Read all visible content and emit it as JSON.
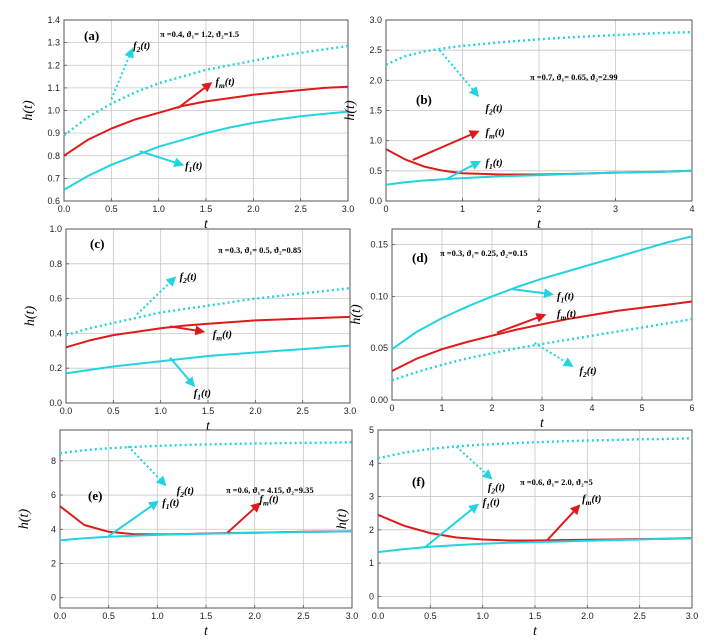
{
  "figure": {
    "y_axis_label": "h(t)",
    "x_axis_label": "t"
  },
  "chart_data": [
    {
      "type": "line",
      "panel_label": "(a)",
      "params_text": "π =0.4, ϑ₁= 1.2, ϑ₂=1.5",
      "xlabel": "t",
      "ylabel": "h(t)",
      "xlim": [
        0,
        3
      ],
      "ylim": [
        0.6,
        1.4
      ],
      "xticks": [
        0,
        0.5,
        1,
        1.5,
        2,
        2.5,
        3
      ],
      "xtick_labels": [
        "0.0",
        "0.5",
        "1.0",
        "1.5",
        "2.0",
        "2.5",
        "3.0"
      ],
      "yticks": [
        0.6,
        0.7,
        0.8,
        0.9,
        1.0,
        1.1,
        1.2,
        1.3,
        1.4
      ],
      "ytick_labels": [
        "0.6",
        "0.7",
        "0.8",
        "0.9",
        "1.0",
        "1.1",
        "1.2",
        "1.3",
        "1.4"
      ],
      "grid": true,
      "x": [
        0,
        0.25,
        0.5,
        0.75,
        1,
        1.25,
        1.5,
        1.75,
        2,
        2.25,
        2.5,
        2.75,
        3
      ],
      "series": [
        {
          "name": "f2(t)",
          "style": "dotted",
          "color": "#22d3e0",
          "values": [
            0.89,
            0.97,
            1.03,
            1.08,
            1.12,
            1.15,
            1.18,
            1.2,
            1.22,
            1.24,
            1.255,
            1.27,
            1.285
          ]
        },
        {
          "name": "fm(t)",
          "style": "solid",
          "color": "#e01a1a",
          "values": [
            0.8,
            0.87,
            0.92,
            0.96,
            0.99,
            1.02,
            1.04,
            1.055,
            1.07,
            1.08,
            1.09,
            1.1,
            1.105
          ]
        },
        {
          "name": "f1(t)",
          "style": "solid",
          "color": "#22d3e0",
          "values": [
            0.65,
            0.71,
            0.76,
            0.8,
            0.84,
            0.87,
            0.9,
            0.925,
            0.945,
            0.96,
            0.975,
            0.985,
            0.995
          ]
        }
      ],
      "annotations": [
        {
          "text": "f",
          "sub": "2",
          "suffix": "(t)",
          "color": "#22d3e0",
          "style": "dotted",
          "from": [
            0.5,
            1.05
          ],
          "to": [
            0.72,
            1.27
          ],
          "label_at": [
            0.73,
            1.29
          ]
        },
        {
          "text": "f",
          "sub": "m",
          "suffix": "(t)",
          "color": "#e01a1a",
          "style": "solid",
          "from": [
            1.2,
            1.01
          ],
          "to": [
            1.55,
            1.12
          ],
          "label_at": [
            1.6,
            1.13
          ]
        },
        {
          "text": "f",
          "sub": "1",
          "suffix": "(t)",
          "color": "#22d3e0",
          "style": "solid",
          "from": [
            0.8,
            0.82
          ],
          "to": [
            1.25,
            0.76
          ],
          "label_at": [
            1.28,
            0.76
          ]
        }
      ]
    },
    {
      "type": "line",
      "panel_label": "(b)",
      "params_text": "π =0.7, ϑ₁= 0.65, ϑ₂=2.99",
      "xlabel": "t",
      "ylabel": "h(t)",
      "xlim": [
        0,
        4
      ],
      "ylim": [
        0,
        3.0
      ],
      "xticks": [
        0,
        1,
        2,
        3,
        4
      ],
      "xtick_labels": [
        "0",
        "1",
        "2",
        "3",
        "4"
      ],
      "yticks": [
        0,
        0.5,
        1.0,
        1.5,
        2.0,
        2.5,
        3.0
      ],
      "ytick_labels": [
        "0.0",
        "0.5",
        "1.0",
        "1.5",
        "2.0",
        "2.5",
        "3.0"
      ],
      "grid": true,
      "x": [
        0,
        0.25,
        0.5,
        0.75,
        1,
        1.5,
        2,
        2.5,
        3,
        3.5,
        4
      ],
      "series": [
        {
          "name": "f2(t)",
          "style": "dotted",
          "color": "#22d3e0",
          "values": [
            2.26,
            2.4,
            2.48,
            2.53,
            2.57,
            2.63,
            2.68,
            2.72,
            2.75,
            2.78,
            2.8
          ]
        },
        {
          "name": "fm(t)",
          "style": "solid",
          "color": "#e01a1a",
          "values": [
            0.86,
            0.69,
            0.57,
            0.5,
            0.46,
            0.44,
            0.44,
            0.45,
            0.47,
            0.48,
            0.5
          ]
        },
        {
          "name": "f1(t)",
          "style": "solid",
          "color": "#22d3e0",
          "values": [
            0.27,
            0.31,
            0.34,
            0.36,
            0.38,
            0.41,
            0.43,
            0.45,
            0.47,
            0.48,
            0.5
          ]
        }
      ],
      "annotations": [
        {
          "text": "f",
          "sub": "2",
          "suffix": "(t)",
          "color": "#22d3e0",
          "style": "dotted",
          "from": [
            0.7,
            2.5
          ],
          "to": [
            1.2,
            1.75
          ],
          "label_at": [
            1.3,
            1.55
          ]
        },
        {
          "text": "f",
          "sub": "m",
          "suffix": "(t)",
          "color": "#e01a1a",
          "style": "solid",
          "from": [
            0.35,
            0.68
          ],
          "to": [
            1.2,
            1.15
          ],
          "label_at": [
            1.3,
            1.15
          ]
        },
        {
          "text": "f",
          "sub": "1",
          "suffix": "(t)",
          "color": "#22d3e0",
          "style": "solid",
          "from": [
            0.8,
            0.37
          ],
          "to": [
            1.22,
            0.65
          ],
          "label_at": [
            1.3,
            0.65
          ]
        }
      ]
    },
    {
      "type": "line",
      "panel_label": "(c)",
      "params_text": "π =0.3, ϑ₁= 0.5, ϑ₂=0.85",
      "xlabel": "t",
      "ylabel": "h(t)",
      "xlim": [
        0,
        3
      ],
      "ylim": [
        0,
        1.0
      ],
      "xticks": [
        0,
        0.5,
        1,
        1.5,
        2,
        2.5,
        3
      ],
      "xtick_labels": [
        "0.0",
        "0.5",
        "1.0",
        "1.5",
        "2.0",
        "2.5",
        "3.0"
      ],
      "yticks": [
        0,
        0.2,
        0.4,
        0.6,
        0.8,
        1.0
      ],
      "ytick_labels": [
        "0.0",
        "0.2",
        "0.4",
        "0.6",
        "0.8",
        "1.0"
      ],
      "grid": true,
      "x": [
        0,
        0.25,
        0.5,
        0.75,
        1,
        1.25,
        1.5,
        1.75,
        2,
        2.25,
        2.5,
        2.75,
        3
      ],
      "series": [
        {
          "name": "f2(t)",
          "style": "dotted",
          "color": "#22d3e0",
          "values": [
            0.39,
            0.43,
            0.46,
            0.49,
            0.52,
            0.54,
            0.56,
            0.58,
            0.6,
            0.615,
            0.63,
            0.645,
            0.66
          ]
        },
        {
          "name": "fm(t)",
          "style": "solid",
          "color": "#e01a1a",
          "values": [
            0.32,
            0.36,
            0.39,
            0.41,
            0.43,
            0.445,
            0.455,
            0.465,
            0.475,
            0.48,
            0.485,
            0.49,
            0.495
          ]
        },
        {
          "name": "f1(t)",
          "style": "solid",
          "color": "#22d3e0",
          "values": [
            0.17,
            0.19,
            0.21,
            0.225,
            0.24,
            0.255,
            0.27,
            0.28,
            0.29,
            0.3,
            0.31,
            0.32,
            0.33
          ]
        }
      ],
      "annotations": [
        {
          "text": "f",
          "sub": "2",
          "suffix": "(t)",
          "color": "#22d3e0",
          "style": "dotted",
          "from": [
            0.75,
            0.51
          ],
          "to": [
            1.15,
            0.72
          ],
          "label_at": [
            1.2,
            0.73
          ]
        },
        {
          "text": "f",
          "sub": "m",
          "suffix": "(t)",
          "color": "#e01a1a",
          "style": "solid",
          "from": [
            1.1,
            0.44
          ],
          "to": [
            1.45,
            0.41
          ],
          "label_at": [
            1.55,
            0.4
          ]
        },
        {
          "text": "f",
          "sub": "1",
          "suffix": "(t)",
          "color": "#22d3e0",
          "style": "solid",
          "from": [
            1.1,
            0.26
          ],
          "to": [
            1.35,
            0.1
          ],
          "label_at": [
            1.35,
            0.06
          ]
        }
      ]
    },
    {
      "type": "line",
      "panel_label": "(d)",
      "params_text": "π =0.3, ϑ₁= 0.25, ϑ₂=0.15",
      "xlabel": "t",
      "ylabel": "h(t)",
      "xlim": [
        0,
        6
      ],
      "ylim": [
        0,
        0.165
      ],
      "xticks": [
        0,
        1,
        2,
        3,
        4,
        5,
        6
      ],
      "xtick_labels": [
        "0",
        "1",
        "2",
        "3",
        "4",
        "5",
        "6"
      ],
      "yticks": [
        0,
        0.05,
        0.1,
        0.15
      ],
      "ytick_labels": [
        "0.00",
        "0.05",
        "0.10",
        "0.15"
      ],
      "grid": true,
      "x": [
        0,
        0.5,
        1,
        1.5,
        2,
        2.5,
        3,
        3.5,
        4,
        4.5,
        5,
        5.5,
        6
      ],
      "series": [
        {
          "name": "f1(t)",
          "style": "solid",
          "color": "#22d3e0",
          "values": [
            0.049,
            0.066,
            0.079,
            0.09,
            0.1,
            0.109,
            0.117,
            0.124,
            0.131,
            0.138,
            0.145,
            0.152,
            0.158
          ]
        },
        {
          "name": "fm(t)",
          "style": "solid",
          "color": "#e01a1a",
          "values": [
            0.028,
            0.04,
            0.049,
            0.056,
            0.062,
            0.068,
            0.073,
            0.078,
            0.082,
            0.086,
            0.089,
            0.092,
            0.095
          ]
        },
        {
          "name": "f2(t)",
          "style": "dotted",
          "color": "#22d3e0",
          "values": [
            0.019,
            0.027,
            0.034,
            0.04,
            0.045,
            0.05,
            0.054,
            0.058,
            0.062,
            0.066,
            0.07,
            0.074,
            0.078
          ]
        }
      ],
      "annotations": [
        {
          "text": "f",
          "sub": "1",
          "suffix": "(t)",
          "color": "#22d3e0",
          "style": "solid",
          "from": [
            2.4,
            0.107
          ],
          "to": [
            3.2,
            0.102
          ],
          "label_at": [
            3.3,
            0.101
          ]
        },
        {
          "text": "f",
          "sub": "m",
          "suffix": "(t)",
          "color": "#e01a1a",
          "style": "solid",
          "from": [
            2.1,
            0.065
          ],
          "to": [
            3.05,
            0.082
          ],
          "label_at": [
            3.3,
            0.084
          ]
        },
        {
          "text": "f",
          "sub": "2",
          "suffix": "(t)",
          "color": "#22d3e0",
          "style": "dotted",
          "from": [
            2.85,
            0.055
          ],
          "to": [
            3.6,
            0.033
          ],
          "label_at": [
            3.75,
            0.029
          ]
        }
      ]
    },
    {
      "type": "line",
      "panel_label": "(e)",
      "params_text": "π =0.6, ϑ₁= 4.15, ϑ₂=9.35",
      "xlabel": "t",
      "ylabel": "h(t)",
      "xlim": [
        0,
        3
      ],
      "ylim": [
        -0.6,
        9.8
      ],
      "xticks": [
        0,
        0.5,
        1,
        1.5,
        2,
        2.5,
        3
      ],
      "xtick_labels": [
        "0.0",
        "0.5",
        "1.0",
        "1.5",
        "2.0",
        "2.5",
        "3.0"
      ],
      "yticks": [
        0,
        2,
        4,
        6,
        8
      ],
      "ytick_labels": [
        "0",
        "2",
        "4",
        "6",
        "8"
      ],
      "grid": true,
      "x": [
        0,
        0.25,
        0.5,
        0.75,
        1,
        1.25,
        1.5,
        1.75,
        2,
        2.25,
        2.5,
        2.75,
        3
      ],
      "series": [
        {
          "name": "f2(t)",
          "style": "dotted",
          "color": "#22d3e0",
          "values": [
            8.45,
            8.62,
            8.73,
            8.81,
            8.87,
            8.92,
            8.96,
            8.99,
            9.01,
            9.03,
            9.05,
            9.06,
            9.08
          ]
        },
        {
          "name": "fm(t)",
          "style": "solid",
          "color": "#e01a1a",
          "values": [
            5.35,
            4.25,
            3.85,
            3.72,
            3.7,
            3.72,
            3.75,
            3.78,
            3.8,
            3.83,
            3.85,
            3.87,
            3.89
          ]
        },
        {
          "name": "f1(t)",
          "style": "solid",
          "color": "#22d3e0",
          "values": [
            3.35,
            3.47,
            3.56,
            3.62,
            3.67,
            3.71,
            3.74,
            3.77,
            3.8,
            3.82,
            3.84,
            3.86,
            3.88
          ]
        }
      ],
      "annotations": [
        {
          "text": "f",
          "sub": "2",
          "suffix": "(t)",
          "color": "#22d3e0",
          "style": "dotted",
          "from": [
            0.7,
            8.85
          ],
          "to": [
            1.08,
            6.6
          ],
          "label_at": [
            1.2,
            6.3
          ]
        },
        {
          "text": "f",
          "sub": "1",
          "suffix": "(t)",
          "color": "#22d3e0",
          "style": "solid",
          "from": [
            0.5,
            3.6
          ],
          "to": [
            1.0,
            5.6
          ],
          "label_at": [
            1.05,
            5.6
          ]
        },
        {
          "text": "f",
          "sub": "m",
          "suffix": "(t)",
          "color": "#e01a1a",
          "style": "solid",
          "from": [
            1.72,
            3.8
          ],
          "to": [
            2.05,
            5.5
          ],
          "label_at": [
            2.05,
            5.8
          ]
        }
      ]
    },
    {
      "type": "line",
      "panel_label": "(f)",
      "params_text": "π =0.6, ϑ₁= 2.0, ϑ₂=5",
      "xlabel": "t",
      "ylabel": "h(t)",
      "xlim": [
        0,
        3
      ],
      "ylim": [
        -0.35,
        5.0
      ],
      "xticks": [
        0,
        0.5,
        1,
        1.5,
        2,
        2.5,
        3
      ],
      "xtick_labels": [
        "0.0",
        "0.5",
        "1.0",
        "1.5",
        "2.0",
        "2.5",
        "3.0"
      ],
      "yticks": [
        0,
        1,
        2,
        3,
        4,
        5
      ],
      "ytick_labels": [
        "0",
        "1",
        "2",
        "3",
        "4",
        "5"
      ],
      "grid": true,
      "x": [
        0,
        0.25,
        0.5,
        0.75,
        1,
        1.25,
        1.5,
        1.75,
        2,
        2.25,
        2.5,
        2.75,
        3
      ],
      "series": [
        {
          "name": "f2(t)",
          "style": "dotted",
          "color": "#22d3e0",
          "values": [
            4.15,
            4.32,
            4.43,
            4.51,
            4.56,
            4.6,
            4.63,
            4.66,
            4.68,
            4.7,
            4.72,
            4.73,
            4.75
          ]
        },
        {
          "name": "fm(t)",
          "style": "solid",
          "color": "#e01a1a",
          "values": [
            2.45,
            2.12,
            1.9,
            1.77,
            1.71,
            1.68,
            1.68,
            1.69,
            1.7,
            1.71,
            1.72,
            1.73,
            1.75
          ]
        },
        {
          "name": "f1(t)",
          "style": "solid",
          "color": "#22d3e0",
          "values": [
            1.33,
            1.42,
            1.49,
            1.54,
            1.58,
            1.61,
            1.63,
            1.65,
            1.67,
            1.69,
            1.71,
            1.73,
            1.74
          ]
        }
      ],
      "annotations": [
        {
          "text": "f",
          "sub": "2",
          "suffix": "(t)",
          "color": "#22d3e0",
          "style": "dotted",
          "from": [
            0.75,
            4.5
          ],
          "to": [
            1.08,
            3.55
          ],
          "label_at": [
            1.05,
            3.3
          ]
        },
        {
          "text": "f",
          "sub": "1",
          "suffix": "(t)",
          "color": "#22d3e0",
          "style": "solid",
          "from": [
            0.45,
            1.48
          ],
          "to": [
            0.95,
            2.75
          ],
          "label_at": [
            1.0,
            2.85
          ]
        },
        {
          "text": "f",
          "sub": "m",
          "suffix": "(t)",
          "color": "#e01a1a",
          "style": "solid",
          "from": [
            1.62,
            1.7
          ],
          "to": [
            1.92,
            2.72
          ],
          "label_at": [
            1.95,
            2.95
          ]
        }
      ]
    }
  ]
}
